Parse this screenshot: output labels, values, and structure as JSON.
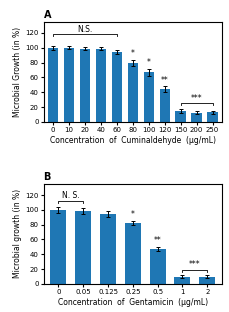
{
  "chart_data": [
    {
      "type": "bar",
      "title": "A",
      "categories": [
        "0",
        "10",
        "20",
        "40",
        "60",
        "80",
        "100",
        "120",
        "150",
        "200",
        "250"
      ],
      "values": [
        100,
        100,
        99,
        99,
        94,
        80,
        67,
        44,
        15,
        12,
        13
      ],
      "errors": [
        3,
        2,
        2,
        2,
        3,
        4,
        5,
        4,
        3,
        2,
        2
      ],
      "xlabel": "Concentration  of  Cuminaldehyde  (μg/mL)",
      "ylabel": "Microbial Growth (in %)",
      "ylim": [
        0,
        135
      ],
      "yticks": [
        0,
        20,
        40,
        60,
        80,
        100,
        120
      ],
      "annotations": [
        {
          "text": "N.S.",
          "from": "0",
          "to": "60",
          "y": 118
        },
        {
          "text": "*",
          "category": "80",
          "y": 86
        },
        {
          "text": "*",
          "category": "100",
          "y": 74
        },
        {
          "text": "**",
          "category": "120",
          "y": 50
        },
        {
          "text": "***",
          "from": "150",
          "to": "250",
          "y": 25
        }
      ]
    },
    {
      "type": "bar",
      "title": "B",
      "categories": [
        "0",
        "0.05",
        "0.125",
        "0.25",
        "0.5",
        "1",
        "2"
      ],
      "values": [
        100,
        99,
        94,
        82,
        47,
        10,
        10
      ],
      "errors": [
        4,
        4,
        4,
        3,
        3,
        2,
        2
      ],
      "xlabel": "Concentration  of  Gentamicin  (μg/mL)",
      "ylabel": "Microbial growth (in %)",
      "ylim": [
        0,
        135
      ],
      "yticks": [
        0,
        20,
        40,
        60,
        80,
        100,
        120
      ],
      "annotations": [
        {
          "text": "N. S.",
          "from": "0",
          "to": "0.05",
          "y": 112
        },
        {
          "text": "*",
          "category": "0.25",
          "y": 87
        },
        {
          "text": "**",
          "category": "0.5",
          "y": 52
        },
        {
          "text": "***",
          "from": "1",
          "to": "2",
          "y": 19
        }
      ]
    }
  ]
}
